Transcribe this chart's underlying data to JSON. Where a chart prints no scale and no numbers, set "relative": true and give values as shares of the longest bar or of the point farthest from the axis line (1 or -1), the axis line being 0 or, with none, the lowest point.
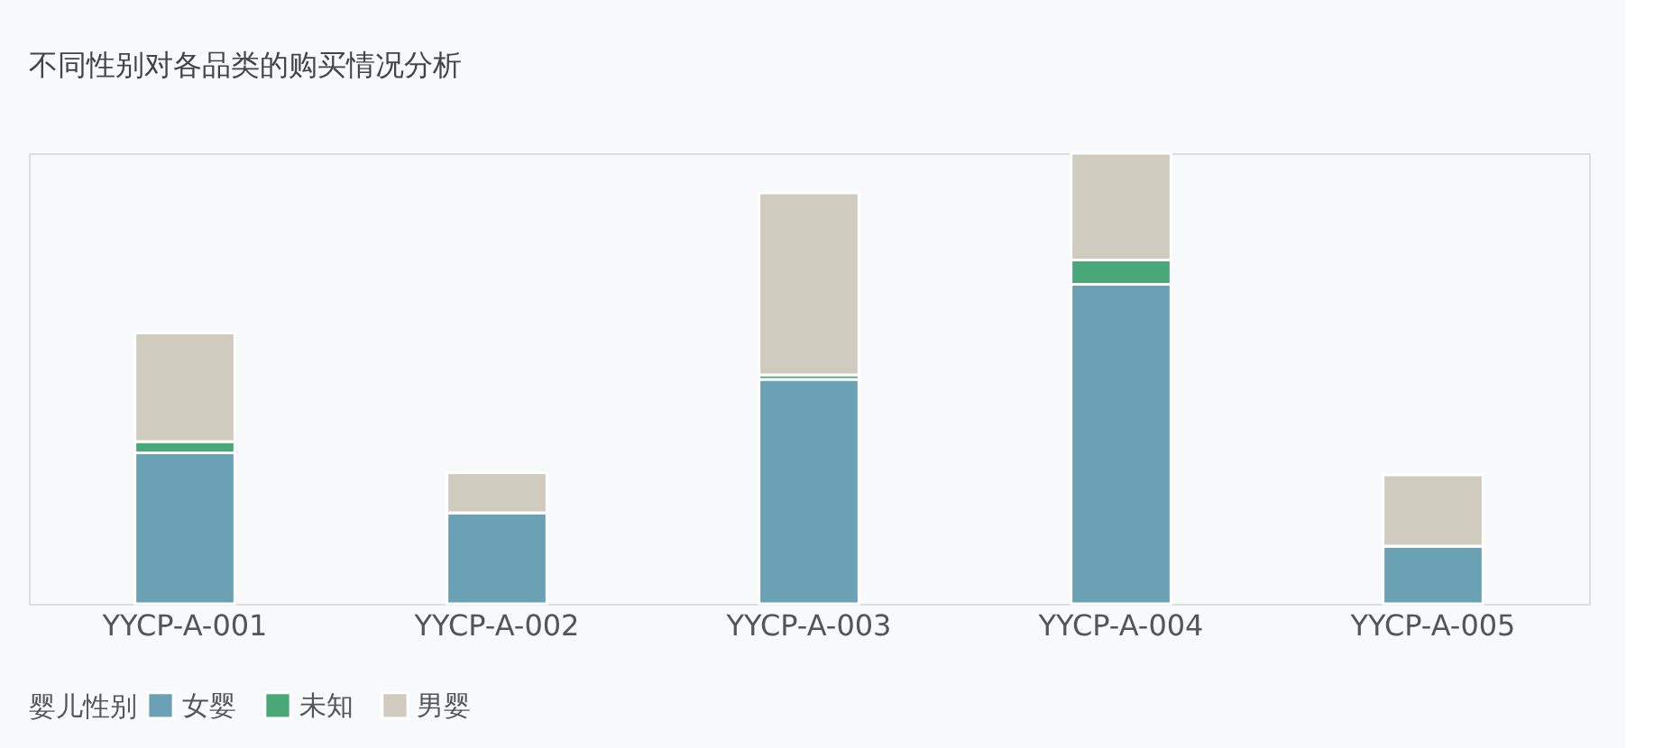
{
  "chart_data": {
    "type": "bar",
    "title": "不同性别对各品类的购买情况分析",
    "categories": [
      "YYCP-A-001",
      "YYCP-A-002",
      "YYCP-A-003",
      "YYCP-A-004",
      "YYCP-A-005"
    ],
    "stacked": true,
    "relative": true,
    "legend_title": "婴儿性别",
    "legend": "bottom left",
    "grid": false,
    "series": [
      {
        "name": "女婴",
        "color": "#6aa1b4",
        "values": [
          0.335,
          0.202,
          0.498,
          0.709,
          0.128
        ]
      },
      {
        "name": "未知",
        "color": "#4aa878",
        "values": [
          0.025,
          0,
          0.01,
          0.054,
          0
        ]
      },
      {
        "name": "男婴",
        "color": "#d0cbbf",
        "values": [
          0.241,
          0.089,
          0.404,
          0.237,
          0.158
        ]
      }
    ]
  }
}
